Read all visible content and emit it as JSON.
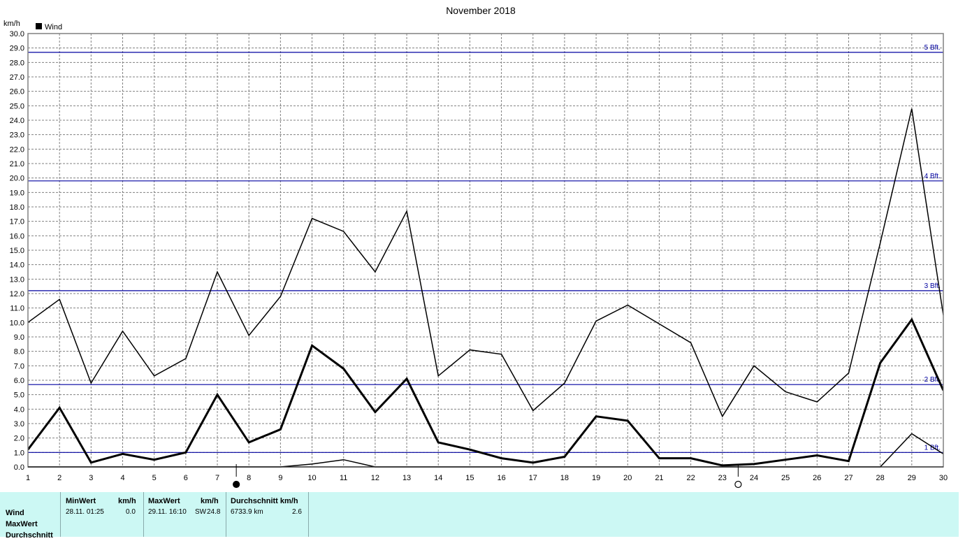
{
  "chart_data": {
    "type": "line",
    "title": "November 2018",
    "ylabel": "km/h",
    "legend": [
      "Wind"
    ],
    "legend_position": "top-left",
    "grid": true,
    "x": [
      1,
      2,
      3,
      4,
      5,
      6,
      7,
      8,
      9,
      10,
      11,
      12,
      13,
      14,
      15,
      16,
      17,
      18,
      19,
      20,
      21,
      22,
      23,
      24,
      25,
      26,
      27,
      28,
      29,
      30
    ],
    "ylim": [
      0,
      30
    ],
    "yticks": [
      "0.0",
      "1.0",
      "2.0",
      "3.0",
      "4.0",
      "5.0",
      "6.0",
      "7.0",
      "8.0",
      "9.0",
      "10.0",
      "11.0",
      "12.0",
      "13.0",
      "14.0",
      "15.0",
      "16.0",
      "17.0",
      "18.0",
      "19.0",
      "20.0",
      "21.0",
      "22.0",
      "23.0",
      "24.0",
      "25.0",
      "26.0",
      "27.0",
      "28.0",
      "29.0",
      "30.0"
    ],
    "series": [
      {
        "values": [
          10.0,
          11.6,
          5.8,
          9.4,
          6.3,
          7.5,
          13.5,
          9.1,
          11.8,
          17.2,
          16.3,
          13.5,
          17.7,
          6.3,
          8.1,
          7.8,
          3.9,
          5.8,
          10.1,
          11.2,
          9.9,
          8.6,
          3.5,
          7.0,
          5.2,
          4.5,
          6.5,
          15.5,
          24.8,
          10.5
        ]
      },
      {
        "values": [
          1.2,
          4.1,
          0.3,
          0.9,
          0.5,
          1.0,
          5.0,
          1.7,
          2.6,
          8.4,
          6.8,
          3.8,
          6.1,
          1.7,
          1.2,
          0.6,
          0.3,
          0.7,
          3.5,
          3.2,
          0.6,
          0.6,
          0.1,
          0.2,
          0.5,
          0.8,
          0.4,
          7.2,
          10.2,
          5.3
        ]
      },
      {
        "values": [
          0.0,
          0.0,
          0.0,
          0.0,
          0.0,
          0.0,
          0.0,
          0.0,
          0.0,
          0.2,
          0.5,
          0.0,
          0.0,
          0.0,
          0.0,
          0.0,
          0.0,
          0.0,
          0.0,
          0.0,
          0.0,
          0.0,
          0.0,
          0.0,
          0.0,
          0.0,
          0.0,
          0.0,
          2.3,
          0.9
        ]
      }
    ],
    "reference_lines": [
      {
        "label": "1 Bft.",
        "value": 1.0
      },
      {
        "label": "2 Bft.",
        "value": 5.7
      },
      {
        "label": "3 Bft.",
        "value": 12.2
      },
      {
        "label": "4 Bft.",
        "value": 19.8
      },
      {
        "label": "5 Bft.",
        "value": 28.7
      }
    ],
    "moon_phases": [
      {
        "type": "new-moon",
        "x": 7.6
      },
      {
        "type": "full-moon",
        "x": 23.5
      }
    ],
    "colors": {
      "series": "#000000",
      "reference": "#0000a0",
      "grid": "#808080"
    }
  },
  "stats": {
    "row_labels": [
      "Wind",
      "MaxWert",
      "Durchschnitt"
    ],
    "min_header": "MinWert",
    "min_unit": "km/h",
    "max_header": "MaxWert",
    "max_unit": "km/h",
    "avg_header": "Durchschnitt",
    "avg_unit": "km/h",
    "min_time": "28.11.  01:25",
    "min_value": "0.0",
    "max_time": "29.11.  16:10",
    "max_dir": "SW",
    "max_value": "24.8",
    "avg_distance": "6733.9 km",
    "avg_value": "2.6",
    "background": "#ccf8f4"
  }
}
